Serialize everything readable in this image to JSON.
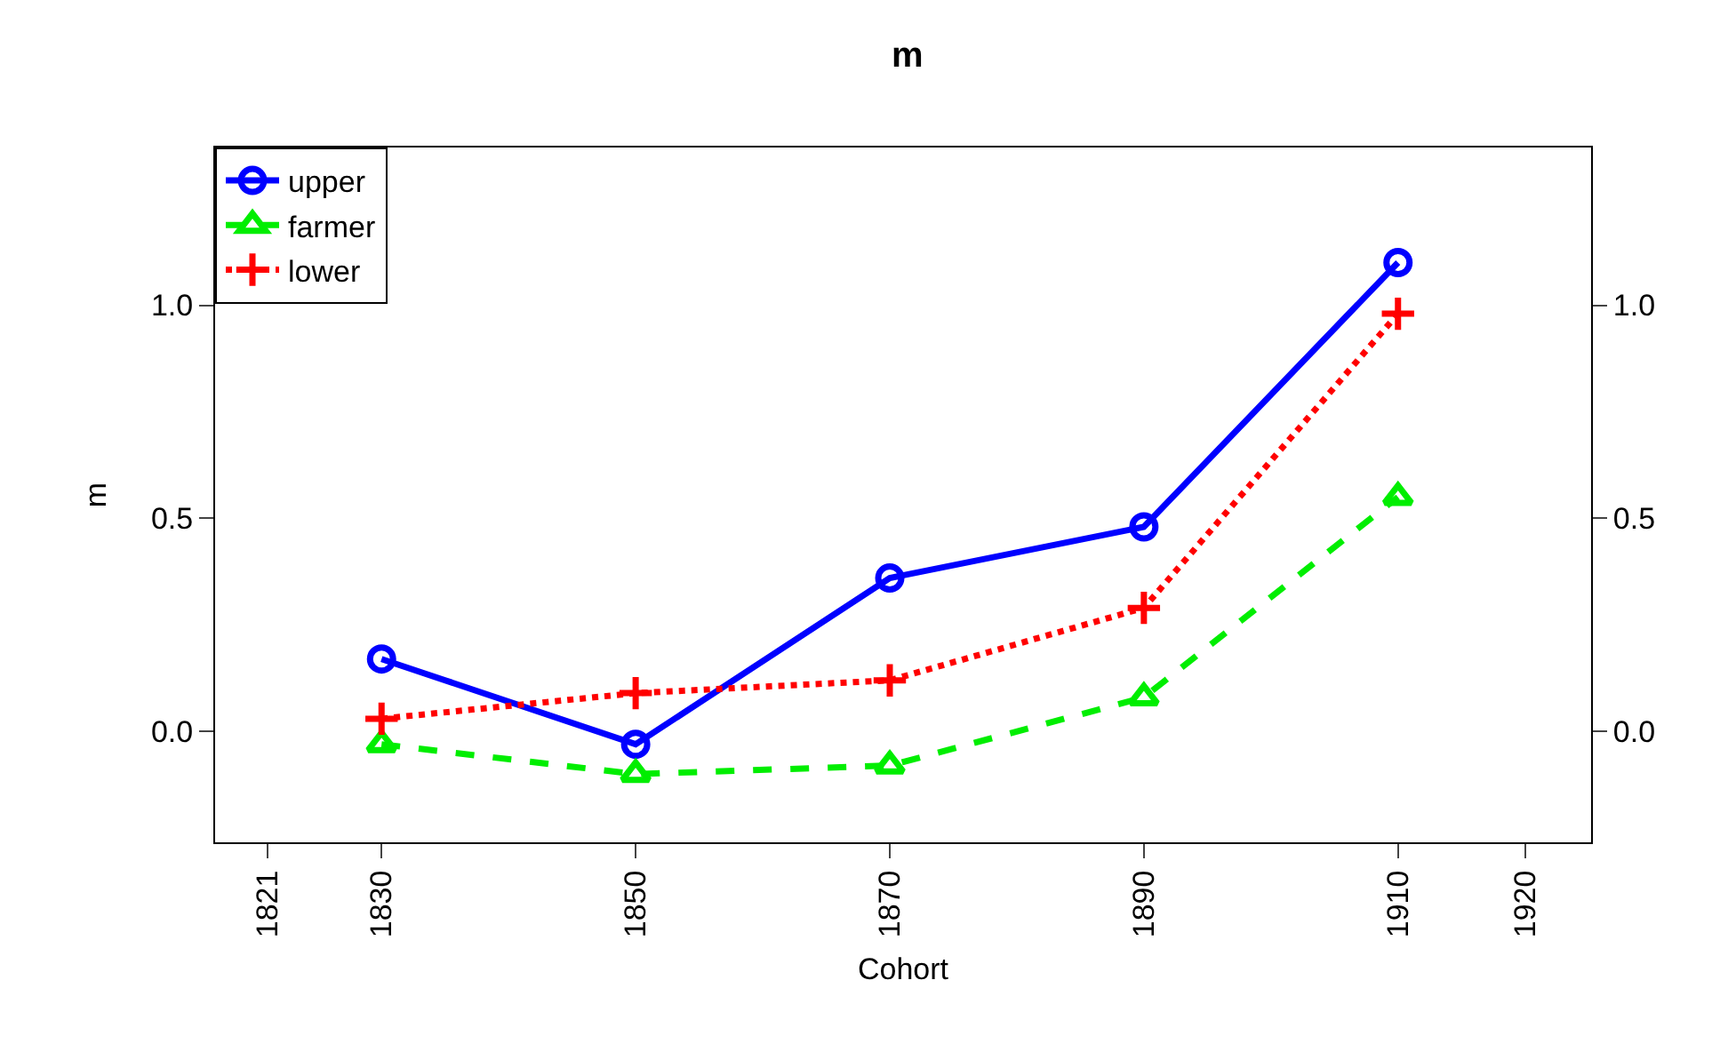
{
  "chart_data": {
    "type": "line",
    "title": "m",
    "xlabel": "Cohort",
    "ylabel": "m",
    "x": [
      1830,
      1850,
      1870,
      1890,
      1910
    ],
    "series": [
      {
        "name": "upper",
        "color": "#0000ff",
        "marker": "circle",
        "line_style": "solid",
        "values": [
          0.17,
          -0.03,
          0.36,
          0.48,
          1.1
        ]
      },
      {
        "name": "farmer",
        "color": "#00ee00",
        "marker": "triangle",
        "line_style": "dashed",
        "values": [
          -0.03,
          -0.1,
          -0.08,
          0.08,
          0.55
        ]
      },
      {
        "name": "lower",
        "color": "#ff0000",
        "marker": "cross",
        "line_style": "dotted",
        "values": [
          0.03,
          0.09,
          0.12,
          0.29,
          0.98
        ]
      }
    ],
    "xlim": [
      1816.9,
      1925.2
    ],
    "xticks": [
      1821,
      1830,
      1850,
      1870,
      1890,
      1910,
      1920
    ],
    "ylim": [
      -0.26,
      1.37
    ],
    "yticks": [
      {
        "value": 0,
        "label": "0.0"
      },
      {
        "value": 0.5,
        "label": "0.5"
      },
      {
        "value": 1,
        "label": "1.0"
      }
    ],
    "y2lim": [
      -0.26,
      1.37
    ],
    "y2ticks": [
      {
        "value": 0,
        "label": "0.0"
      },
      {
        "value": 0.5,
        "label": "0.5"
      },
      {
        "value": 1,
        "label": "1.0"
      }
    ],
    "grid": false,
    "legend": "top left"
  }
}
